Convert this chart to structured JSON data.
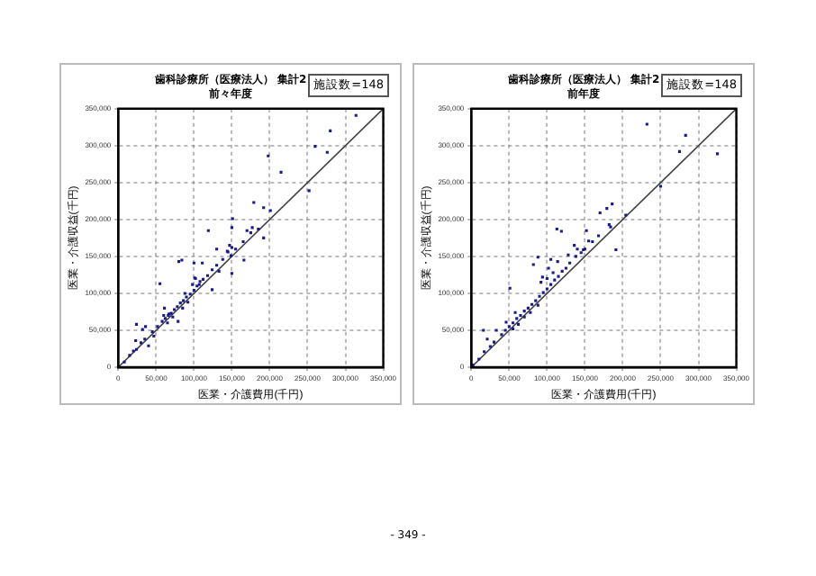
{
  "chart_data": [
    {
      "type": "scatter",
      "title": "歯科診療所（医療法人） 集計2",
      "subtitle": "前々年度",
      "xlabel": "医業・介護費用(千円)",
      "ylabel": "医業・介護収益(千円)",
      "annotations": [
        "施設数=148"
      ],
      "xlim": [
        0,
        350000
      ],
      "ylim": [
        0,
        350000
      ],
      "xticks": [
        0,
        {
          "value": 50000,
          "label": "50,000"
        },
        {
          "value": 100000,
          "label": "100,000"
        },
        {
          "value": 150000,
          "label": "150,000"
        },
        {
          "value": 200000,
          "label": "200,000"
        },
        {
          "value": 250000,
          "label": "250,000"
        },
        {
          "value": 300000,
          "label": "300,000"
        },
        {
          "value": 350000,
          "label": "350,000"
        }
      ],
      "yticks": [
        0,
        {
          "value": 50000,
          "label": "50,000"
        },
        {
          "value": 100000,
          "label": "100,000"
        },
        {
          "value": 150000,
          "label": "150,000"
        },
        {
          "value": 200000,
          "label": "200,000"
        },
        {
          "value": 250000,
          "label": "250,000"
        },
        {
          "value": 300000,
          "label": "300,000"
        },
        {
          "value": 350000,
          "label": "350,000"
        }
      ],
      "grid": true,
      "legend": false,
      "series": [
        {
          "marker": "square",
          "color": "#1a1a8c",
          "x": [
            314000,
            280000,
            260000,
            276000,
            198000,
            215000,
            252000,
            179000,
            192000,
            201000,
            151000,
            119000,
            150000,
            177000,
            170000,
            192000,
            80000,
            84000,
            130000,
            147000,
            144000,
            149000,
            166000,
            100000,
            111000,
            55000,
            101000,
            124000,
            107000,
            150000,
            133000,
            24000,
            32000,
            36000,
            24000,
            23000,
            8000,
            40000,
            47000,
            79000,
            61000,
            67000,
            45000,
            52000,
            58000,
            62000,
            66000,
            70000,
            74000,
            78000,
            82000,
            86000,
            90000,
            95000,
            100000,
            104000,
            108000,
            112000,
            118000,
            124000,
            130000,
            138000,
            145000,
            150000,
            155000,
            165000,
            175000,
            185000,
            30000,
            35000,
            15000,
            20000,
            60000,
            65000,
            72000,
            85000,
            92000,
            98000,
            102000,
            88000
          ],
          "values": [
            341000,
            320000,
            299000,
            291000,
            286000,
            264000,
            239000,
            223000,
            216000,
            212000,
            201000,
            185000,
            189000,
            189000,
            185000,
            175000,
            143000,
            145000,
            160000,
            165000,
            157000,
            151000,
            145000,
            141000,
            141000,
            113000,
            121000,
            105000,
            112000,
            127000,
            130000,
            58000,
            51000,
            55000,
            24000,
            36000,
            7000,
            29000,
            42000,
            62000,
            80000,
            72000,
            48000,
            55000,
            62000,
            66000,
            70000,
            73000,
            78000,
            82000,
            87000,
            90000,
            95000,
            99000,
            104000,
            110000,
            116000,
            119000,
            124000,
            132000,
            138000,
            146000,
            156000,
            162000,
            160000,
            170000,
            182000,
            187000,
            33000,
            38000,
            16000,
            22000,
            70000,
            60000,
            68000,
            80000,
            88000,
            112000,
            120000,
            100000
          ]
        },
        {
          "type": "line",
          "color": "#404040",
          "x": [
            0,
            350000
          ],
          "values": [
            0,
            350000
          ]
        }
      ]
    },
    {
      "type": "scatter",
      "title": "歯科診療所（医療法人） 集計2",
      "subtitle": "前年度",
      "xlabel": "医業・介護費用(千円)",
      "ylabel": "医業・介護収益(千円)",
      "annotations": [
        "施設数=148",
        "- 349 -"
      ],
      "xlim": [
        0,
        350000
      ],
      "ylim": [
        0,
        350000
      ],
      "xticks": [
        0,
        {
          "value": 50000,
          "label": "50,000"
        },
        {
          "value": 100000,
          "label": "100,000"
        },
        {
          "value": 150000,
          "label": "150,000"
        },
        {
          "value": 200000,
          "label": "200,000"
        },
        {
          "value": 250000,
          "label": "250,000"
        },
        {
          "value": 300000,
          "label": "300,000"
        },
        {
          "value": 350000,
          "label": "350,000"
        }
      ],
      "yticks": [
        0,
        {
          "value": 50000,
          "label": "50,000"
        },
        {
          "value": 100000,
          "label": "100,000"
        },
        {
          "value": 150000,
          "label": "150,000"
        },
        {
          "value": 200000,
          "label": "200,000"
        },
        {
          "value": 250000,
          "label": "250,000"
        },
        {
          "value": 300000,
          "label": "300,000"
        },
        {
          "value": 350000,
          "label": "350,000"
        }
      ],
      "grid": true,
      "legend": false,
      "series": [
        {
          "marker": "square",
          "color": "#1a1a8c",
          "x": [
            232000,
            283000,
            275000,
            325000,
            250000,
            186000,
            179000,
            170000,
            204000,
            113000,
            119000,
            152000,
            182000,
            184000,
            191000,
            136000,
            155000,
            82000,
            88000,
            105000,
            114000,
            51000,
            16000,
            21000,
            33000,
            17000,
            2000,
            94000,
            102000,
            128000,
            148000,
            58000,
            46000,
            40000,
            45000,
            50000,
            55000,
            60000,
            65000,
            70000,
            75000,
            80000,
            85000,
            90000,
            95000,
            100000,
            105000,
            110000,
            115000,
            120000,
            125000,
            130000,
            138000,
            145000,
            160000,
            30000,
            25000,
            10000,
            55000,
            62000,
            70000,
            78000,
            88000,
            92000,
            100000,
            108000,
            140000,
            150000,
            168000
          ],
          "values": [
            329000,
            314000,
            292000,
            289000,
            245000,
            221000,
            215000,
            209000,
            206000,
            187000,
            184000,
            185000,
            193000,
            190000,
            159000,
            165000,
            171000,
            139000,
            149000,
            146000,
            143000,
            107000,
            50000,
            38000,
            50000,
            21000,
            3000,
            122000,
            134000,
            152000,
            159000,
            74000,
            61000,
            44000,
            50000,
            55000,
            60000,
            66000,
            70000,
            76000,
            80000,
            85000,
            90000,
            96000,
            101000,
            106000,
            112000,
            118000,
            123000,
            130000,
            134000,
            141000,
            150000,
            155000,
            170000,
            34000,
            28000,
            11000,
            52000,
            58000,
            68000,
            74000,
            84000,
            115000,
            120000,
            128000,
            160000,
            160000,
            178000
          ]
        },
        {
          "type": "line",
          "color": "#404040",
          "x": [
            0,
            350000
          ],
          "values": [
            0,
            350000
          ]
        }
      ]
    }
  ]
}
